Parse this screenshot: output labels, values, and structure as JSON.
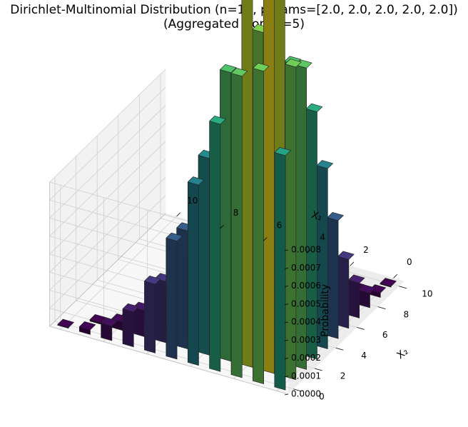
{
  "chart_data": {
    "type": "bar3d",
    "title": "Dirichlet-Multinomial Distribution (n=10, params=[2.0, 2.0, 2.0, 2.0, 2.0])",
    "subtitle": "(Aggregated from k=5)",
    "xlabel": "X₁",
    "ylabel": "X₂",
    "zlabel": "Probability",
    "xlim": [
      -0.5,
      10.5
    ],
    "ylim": [
      -0.5,
      10.5
    ],
    "zlim": [
      0,
      0.0008
    ],
    "x_ticks": [
      "0",
      "2",
      "4",
      "6",
      "8",
      "10"
    ],
    "y_ticks": [
      "0",
      "2",
      "4",
      "6",
      "8",
      "10"
    ],
    "z_ticks": [
      "0.0000",
      "0.0001",
      "0.0002",
      "0.0003",
      "0.0004",
      "0.0005",
      "0.0006",
      "0.0007",
      "0.0008"
    ],
    "colormap": "viridis",
    "grid": true,
    "params": {
      "n": 10,
      "alpha": [
        2.0,
        2.0,
        2.0,
        2.0,
        2.0
      ],
      "k": 5
    }
  }
}
